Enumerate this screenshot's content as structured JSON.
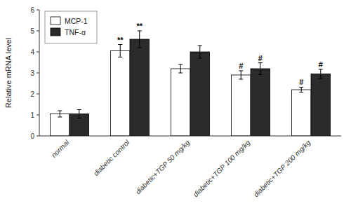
{
  "chart_data": {
    "type": "bar",
    "categories": [
      "normal",
      "diabetic control",
      "diabetic+TGP 50 mg/kg",
      "diabetic+TGP 100 mg/kg",
      "diabetic+TGP 200 mg/kg"
    ],
    "series": [
      {
        "name": "MCP-1",
        "color": "#ffffff",
        "values": [
          1.05,
          4.05,
          3.2,
          2.9,
          2.2
        ],
        "errors": [
          0.15,
          0.3,
          0.2,
          0.2,
          0.12
        ]
      },
      {
        "name": "TNF-α",
        "color": "#2b2b2b",
        "values": [
          1.05,
          4.6,
          4.0,
          3.2,
          2.95
        ],
        "errors": [
          0.2,
          0.4,
          0.3,
          0.28,
          0.22
        ]
      }
    ],
    "ylabel": "Relative mRNA level",
    "ylim": [
      0,
      6
    ],
    "yticks": [
      0,
      1,
      2,
      3,
      4,
      5,
      6
    ],
    "grid": false,
    "legend": "upper left",
    "annotations": [
      {
        "text": "**",
        "category": "diabetic control",
        "series": "MCP-1"
      },
      {
        "text": "**",
        "category": "diabetic control",
        "series": "TNF-α"
      },
      {
        "text": "#",
        "category": "diabetic+TGP 100 mg/kg",
        "series": "MCP-1"
      },
      {
        "text": "#",
        "category": "diabetic+TGP 100 mg/kg",
        "series": "TNF-α"
      },
      {
        "text": "#",
        "category": "diabetic+TGP 200 mg/kg",
        "series": "MCP-1"
      },
      {
        "text": "#",
        "category": "diabetic+TGP 200 mg/kg",
        "series": "TNF-α"
      }
    ]
  }
}
